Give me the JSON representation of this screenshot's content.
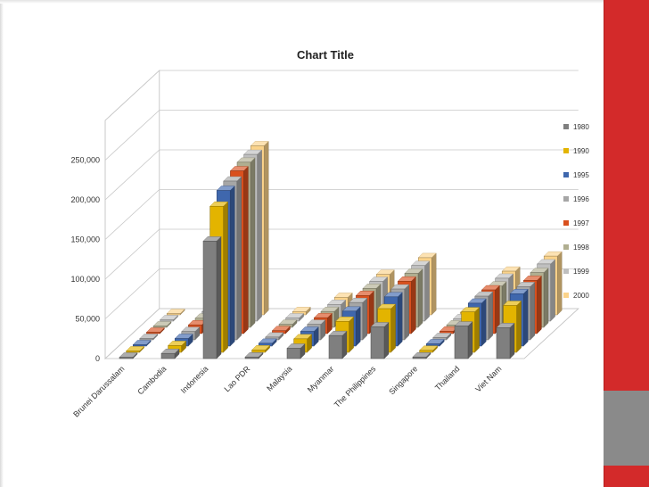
{
  "chart_data": {
    "type": "bar",
    "subtype": "3d-column",
    "title": "Chart Title",
    "xlabel": "",
    "ylabel": "",
    "ylim": [
      0,
      300000
    ],
    "yticks": [
      "0",
      "50,000",
      "100,000",
      "150,000",
      "200,000",
      "250,000"
    ],
    "ytick_values": [
      0,
      50000,
      100000,
      150000,
      200000,
      250000
    ],
    "grid": true,
    "legend_position": "right",
    "categories": [
      "Brunei Darussalam",
      "Cambodia",
      "Indonesia",
      "Lao PDR",
      "Malaysia",
      "Myanmar",
      "The Philippines",
      "Singapore",
      "Thailand",
      "Viet Nam"
    ],
    "series": [
      {
        "name": "1980",
        "color": "#7f7f7f",
        "values": [
          500,
          6500,
          148000,
          2000,
          13000,
          29000,
          40000,
          2000,
          41000,
          39000
        ]
      },
      {
        "name": "1990",
        "color": "#e3b400",
        "values": [
          700,
          8500,
          184000,
          3000,
          17000,
          39000,
          55000,
          2500,
          51000,
          59000
        ]
      },
      {
        "name": "1995",
        "color": "#3f67ad",
        "values": [
          800,
          9500,
          196000,
          3500,
          18500,
          44000,
          62000,
          2800,
          54000,
          66000
        ]
      },
      {
        "name": "1996",
        "color": "#a6a6a6",
        "values": [
          900,
          10500,
          200000,
          3500,
          19500,
          47000,
          64000,
          2900,
          55000,
          67000
        ]
      },
      {
        "name": "1997",
        "color": "#d9501e",
        "values": [
          950,
          11000,
          205000,
          3700,
          20000,
          48000,
          66000,
          3000,
          55000,
          67000
        ]
      },
      {
        "name": "1998",
        "color": "#b0ae90",
        "values": [
          950,
          11500,
          208000,
          3800,
          20000,
          49000,
          68000,
          3000,
          52000,
          69000
        ]
      },
      {
        "name": "1999",
        "color": "#bfbfbf",
        "values": [
          1000,
          12000,
          210000,
          4000,
          21000,
          50000,
          70000,
          3100,
          54000,
          72000
        ]
      },
      {
        "name": "2000",
        "color": "#fbd38a",
        "values": [
          1000,
          12500,
          213000,
          4200,
          22000,
          51000,
          72000,
          3200,
          55000,
          74000
        ]
      }
    ]
  }
}
